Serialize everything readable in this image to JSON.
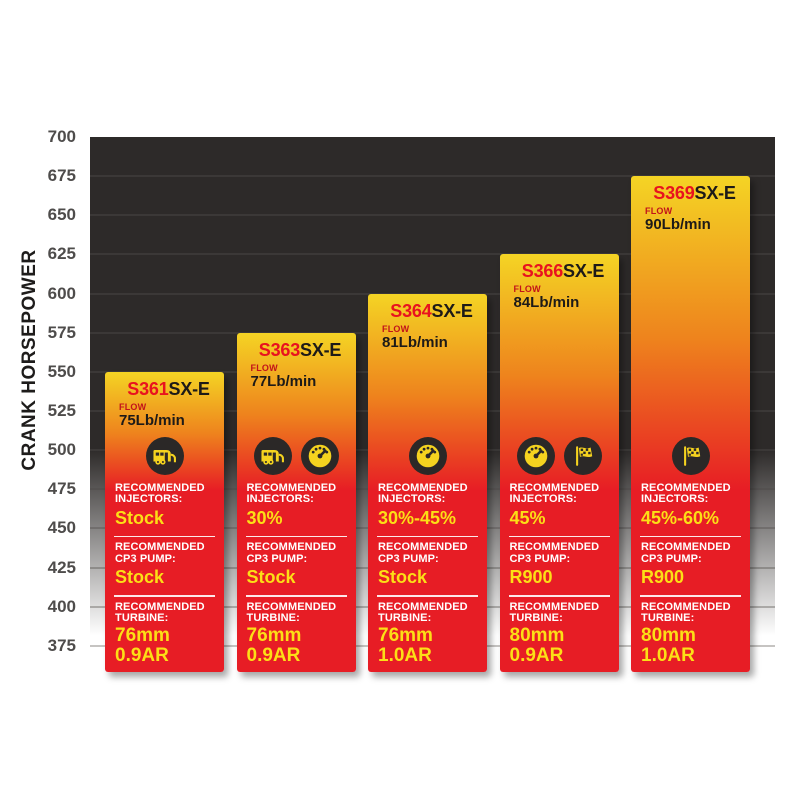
{
  "chart_data": {
    "type": "bar",
    "title": "",
    "xlabel": "",
    "ylabel": "CRANK HORSEPOWER",
    "ylim": [
      350,
      700
    ],
    "yticks": [
      700,
      675,
      650,
      625,
      600,
      575,
      550,
      525,
      500,
      475,
      450,
      425,
      400,
      375
    ],
    "grid": true,
    "legend": "none",
    "categories": [
      "S361SX-E",
      "S363SX-E",
      "S364SX-E",
      "S366SX-E",
      "S369SX-E"
    ],
    "values": [
      550,
      575,
      600,
      625,
      675
    ],
    "section_labels": {
      "recommended": "RECOMMENDED",
      "injectors": "INJECTORS:",
      "cp3_pump": "CP3 PUMP:",
      "turbine": "TURBINE:"
    },
    "bars": [
      {
        "model_prefix": "S361",
        "model_suffix": "SX-E",
        "crank_hp": 550,
        "flow_label": "FLOW",
        "flow": "75Lb/min",
        "icons": [
          "rv-icon"
        ],
        "injectors": "Stock",
        "cp3_pump": "Stock",
        "turbine": [
          "76mm",
          "0.9AR"
        ]
      },
      {
        "model_prefix": "S363",
        "model_suffix": "SX-E",
        "crank_hp": 575,
        "flow_label": "FLOW",
        "flow": "77Lb/min",
        "icons": [
          "rv-icon",
          "gauge-icon"
        ],
        "injectors": "30%",
        "cp3_pump": "Stock",
        "turbine": [
          "76mm",
          "0.9AR"
        ]
      },
      {
        "model_prefix": "S364",
        "model_suffix": "SX-E",
        "crank_hp": 600,
        "flow_label": "FLOW",
        "flow": "81Lb/min",
        "icons": [
          "gauge-icon"
        ],
        "injectors": "30%-45%",
        "cp3_pump": "Stock",
        "turbine": [
          "76mm",
          "1.0AR"
        ]
      },
      {
        "model_prefix": "S366",
        "model_suffix": "SX-E",
        "crank_hp": 625,
        "flow_label": "FLOW",
        "flow": "84Lb/min",
        "icons": [
          "gauge-icon",
          "flag-icon"
        ],
        "injectors": "45%",
        "cp3_pump": "R900",
        "turbine": [
          "80mm",
          "0.9AR"
        ]
      },
      {
        "model_prefix": "S369",
        "model_suffix": "SX-E",
        "crank_hp": 675,
        "flow_label": "FLOW",
        "flow": "90Lb/min",
        "icons": [
          "flag-icon"
        ],
        "injectors": "45%-60%",
        "cp3_pump": "R900",
        "turbine": [
          "80mm",
          "1.0AR"
        ]
      }
    ]
  },
  "colors": {
    "plot_dark": "#2d2a29",
    "grid_dark": "#3b3837",
    "grid_light": "#c6c4c2",
    "bar_yellow": "#f4d424",
    "bar_orange": "#ee831d",
    "bar_red": "#e71d25",
    "model_red": "#e8121f",
    "text_black": "#1d1a18",
    "flow_red": "#c2131a",
    "label_white": "#ffffff",
    "value_yellow": "#fcdf16",
    "icon_circle": "#2b2827",
    "icon_glyph": "#f5d31f"
  }
}
